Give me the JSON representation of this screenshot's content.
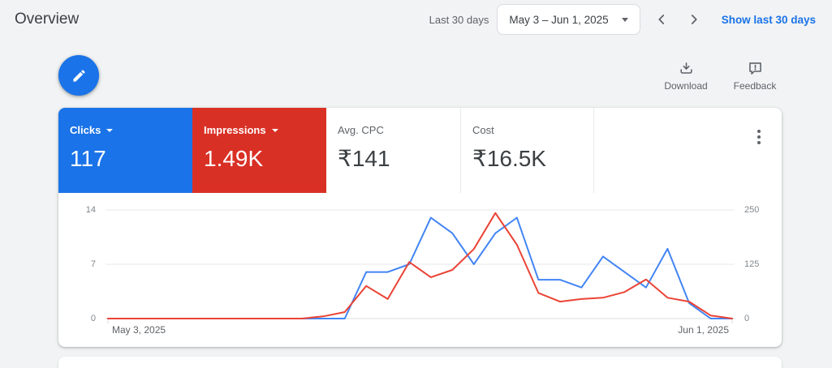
{
  "page": {
    "title": "Overview"
  },
  "header": {
    "range_label": "Last 30 days",
    "date_value": "May 3 – Jun 1, 2025",
    "show_last_link": "Show last 30 days"
  },
  "actions": {
    "download_label": "Download",
    "feedback_label": "Feedback"
  },
  "scorecards": [
    {
      "label": "Clicks",
      "value": "117"
    },
    {
      "label": "Impressions",
      "value": "1.49K"
    },
    {
      "label": "Avg. CPC",
      "value": "₹141"
    },
    {
      "label": "Cost",
      "value": "₹16.5K"
    }
  ],
  "colors": {
    "clicks_card": "#1a73e8",
    "impressions_card": "#d93025",
    "clicks_line": "#4285f4",
    "impressions_line": "#ea4335",
    "link_blue": "#1a73e8",
    "grid_line": "#e8eaed",
    "axis_line": "#dadce0"
  },
  "chart_ui": {
    "left_ticks": [
      "14",
      "7",
      "0"
    ],
    "right_ticks": [
      "250",
      "125",
      "0"
    ],
    "x_start": "May 3, 2025",
    "x_end": "Jun 1, 2025"
  },
  "chart_data": {
    "type": "line",
    "title": "Clicks vs Impressions, last 30 days",
    "x_start": "May 3, 2025",
    "x_end": "Jun 1, 2025",
    "points": 30,
    "grid": true,
    "legend_position": "none",
    "left_axis": {
      "label": "Clicks",
      "min": 0,
      "max": 14,
      "ticks": [
        0,
        7,
        14
      ]
    },
    "right_axis": {
      "label": "Impressions",
      "min": 0,
      "max": 250,
      "ticks": [
        0,
        125,
        250
      ]
    },
    "series": [
      {
        "name": "Clicks",
        "axis": "left",
        "color": "#4285f4",
        "values": [
          0,
          0,
          0,
          0,
          0,
          0,
          0,
          0,
          0,
          0,
          0,
          0,
          6,
          6,
          7,
          13,
          11,
          7,
          11,
          13,
          5,
          5,
          4,
          8,
          6,
          4,
          9,
          2,
          0,
          0
        ]
      },
      {
        "name": "Impressions",
        "axis": "right",
        "color": "#ea4335",
        "values": [
          0,
          0,
          0,
          0,
          0,
          0,
          0,
          0,
          0,
          0,
          5,
          15,
          75,
          45,
          130,
          95,
          112,
          160,
          243,
          170,
          59,
          39,
          45,
          48,
          61,
          90,
          48,
          39,
          7,
          0
        ]
      }
    ]
  }
}
